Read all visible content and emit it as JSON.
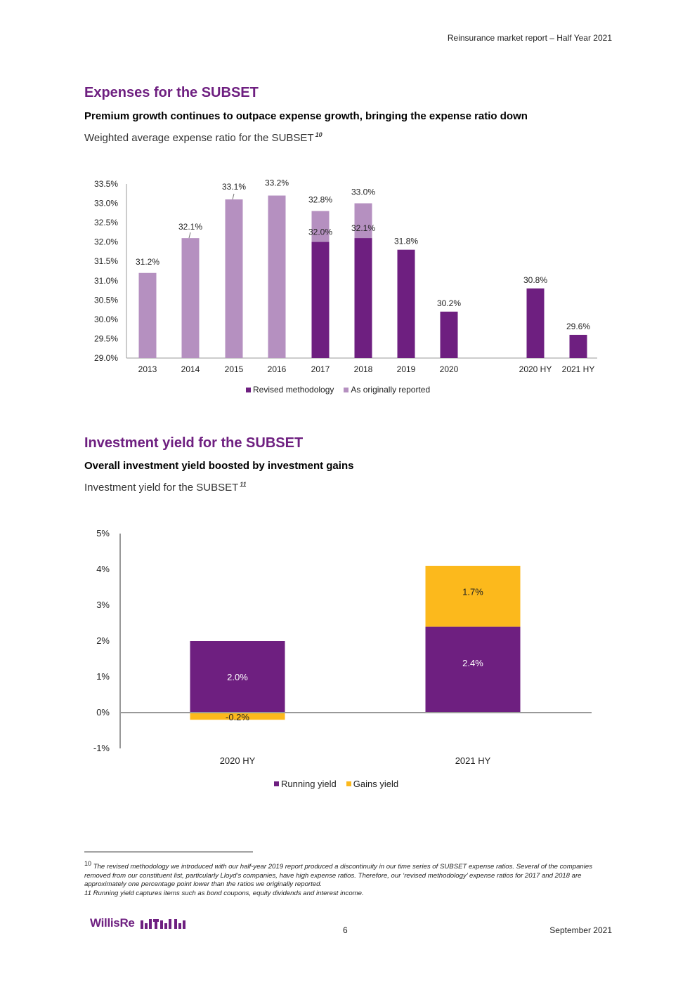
{
  "header": {
    "report_title": "Reinsurance market report – Half Year 2021"
  },
  "section1": {
    "title": "Expenses for the SUBSET",
    "subtitle": "Premium growth continues to outpace expense growth, bringing the expense ratio down",
    "caption": "Weighted average expense ratio for the SUBSET",
    "caption_ref": "10"
  },
  "section2": {
    "title": "Investment yield for the SUBSET",
    "subtitle": "Overall investment yield boosted by investment gains",
    "caption": "Investment yield for the SUBSET",
    "caption_ref": "11"
  },
  "chart_data": [
    {
      "type": "bar",
      "title": "Weighted average expense ratio for the SUBSET",
      "categories": [
        "2013",
        "2014",
        "2015",
        "2016",
        "2017",
        "2018",
        "2019",
        "2020",
        "2020 HY",
        "2021 HY"
      ],
      "ylim": [
        29.0,
        33.5
      ],
      "yticks": [
        "29.0%",
        "29.5%",
        "30.0%",
        "30.5%",
        "31.0%",
        "31.5%",
        "32.0%",
        "32.5%",
        "33.0%",
        "33.5%"
      ],
      "series": [
        {
          "name": "Revised methodology",
          "color": "#6e1f80",
          "values": [
            null,
            null,
            null,
            null,
            32.0,
            32.1,
            31.8,
            30.2,
            30.8,
            29.6
          ],
          "labels": [
            "",
            "",
            "",
            "",
            "32.0%",
            "32.1%",
            "31.8%",
            "30.2%",
            "30.8%",
            "29.6%"
          ]
        },
        {
          "name": "As originally reported",
          "color": "#b590c0",
          "values": [
            31.2,
            32.1,
            33.1,
            33.2,
            32.8,
            33.0,
            null,
            null,
            null,
            null
          ],
          "labels": [
            "31.2%",
            "32.1%",
            "33.1%",
            "33.2%",
            "32.8%",
            "33.0%",
            "",
            "",
            "",
            ""
          ]
        }
      ],
      "legend": [
        "Revised methodology",
        "As originally reported"
      ]
    },
    {
      "type": "bar",
      "stacked": true,
      "title": "Investment yield for the SUBSET",
      "categories": [
        "2020 HY",
        "2021 HY"
      ],
      "ylim": [
        -1,
        5
      ],
      "yticks": [
        "-1%",
        "0%",
        "1%",
        "2%",
        "3%",
        "4%",
        "5%"
      ],
      "series": [
        {
          "name": "Running yield",
          "color": "#6e1f80",
          "values": [
            2.0,
            2.4
          ],
          "labels": [
            "2.0%",
            "2.4%"
          ]
        },
        {
          "name": "Gains yield",
          "color": "#fcb91c",
          "values": [
            -0.2,
            1.7
          ],
          "labels": [
            "-0.2%",
            "1.7%"
          ]
        }
      ],
      "legend": [
        "Running yield",
        "Gains yield"
      ]
    }
  ],
  "footnotes": {
    "fn10_num": "10",
    "fn10_text": "The revised methodology we introduced with our half-year 2019 report produced a discontinuity in our time series of SUBSET expense ratios. Several of the companies removed from our constituent list, particularly Lloyd’s companies, have high expense ratios.  Therefore, our ‘revised methodology’ expense ratios for 2017 and 2018 are approximately one percentage point lower than the ratios we originally reported.",
    "fn11_text": "11 Running yield captures items such as bond coupons, equity dividends and interest income."
  },
  "footer": {
    "logo_text": "WillisRe",
    "page_number": "6",
    "date": "September 2021"
  },
  "colors": {
    "brand_purple": "#6e1f80",
    "light_purple": "#b590c0",
    "gold": "#fcb91c"
  }
}
